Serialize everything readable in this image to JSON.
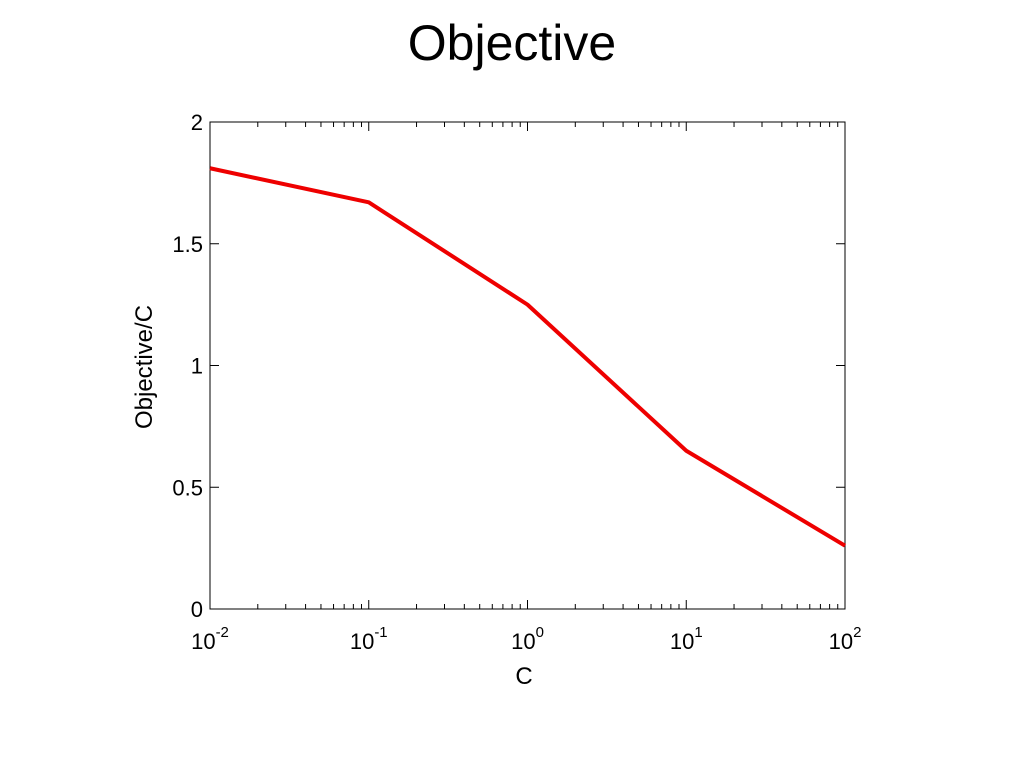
{
  "chart_data": {
    "type": "line",
    "title": "Objective",
    "xlabel": "C",
    "ylabel": "Objective/C",
    "x_scale": "log",
    "xlim": [
      0.01,
      100
    ],
    "ylim": [
      0,
      2
    ],
    "x_ticks": [
      {
        "base": "10",
        "exp": "-2",
        "value": 0.01
      },
      {
        "base": "10",
        "exp": "-1",
        "value": 0.1
      },
      {
        "base": "10",
        "exp": "0",
        "value": 1
      },
      {
        "base": "10",
        "exp": "1",
        "value": 10
      },
      {
        "base": "10",
        "exp": "2",
        "value": 100
      }
    ],
    "y_ticks": [
      {
        "label": "0",
        "value": 0
      },
      {
        "label": "0.5",
        "value": 0.5
      },
      {
        "label": "1",
        "value": 1
      },
      {
        "label": "1.5",
        "value": 1.5
      },
      {
        "label": "2",
        "value": 2
      }
    ],
    "grid": false,
    "series": [
      {
        "color": "#ee0000",
        "x": [
          0.01,
          0.1,
          1,
          10,
          100
        ],
        "y": [
          1.81,
          1.67,
          1.25,
          0.65,
          0.26
        ]
      }
    ]
  }
}
